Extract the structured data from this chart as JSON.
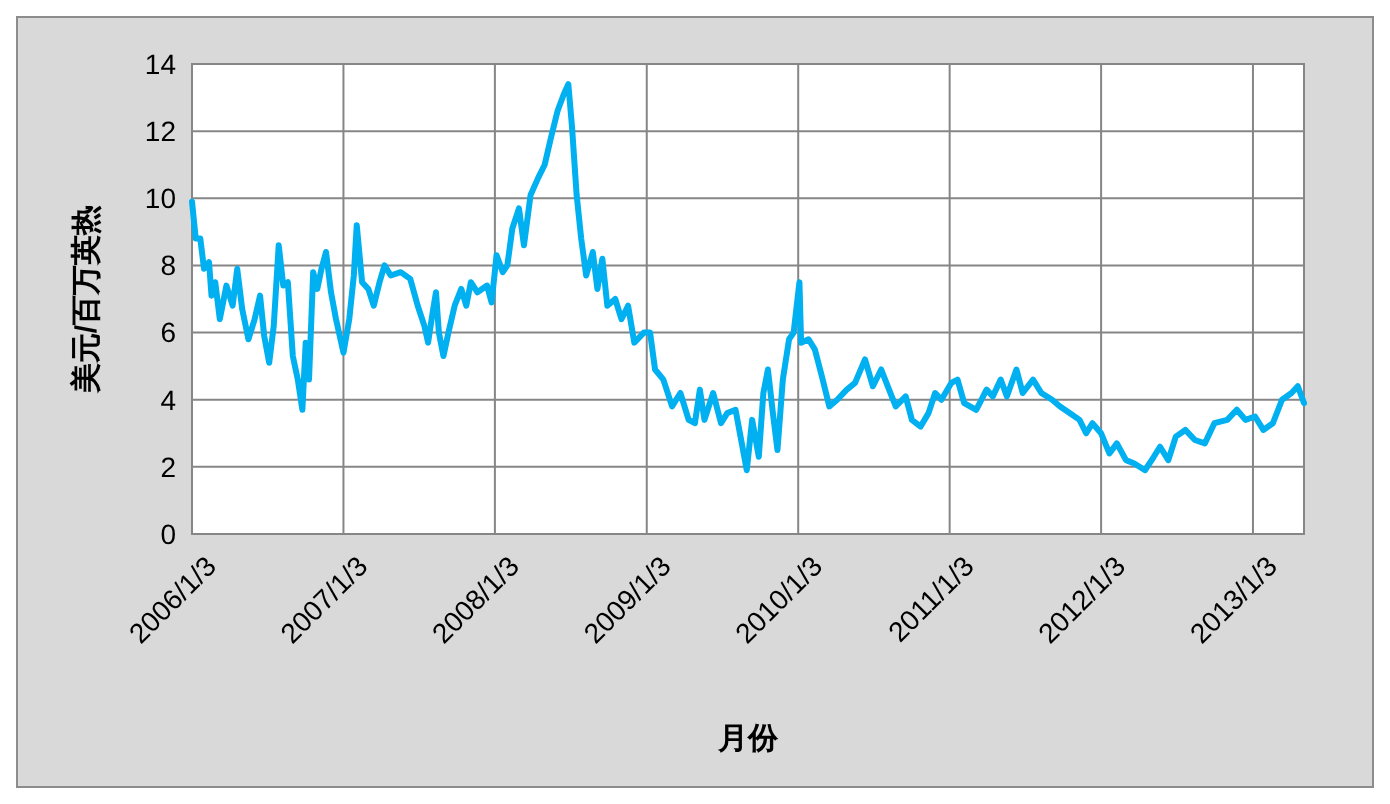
{
  "chart_data": {
    "type": "line",
    "xlabel": "月份",
    "ylabel": "美元/百万英热",
    "xlim": [
      "2006-01-03",
      "2013-05-06"
    ],
    "ylim": [
      0,
      14
    ],
    "yticks": [
      0,
      2,
      4,
      6,
      8,
      10,
      12,
      14
    ],
    "xticks": [
      {
        "value": "2006-01-03",
        "label": "2006/1/3"
      },
      {
        "value": "2007-01-03",
        "label": "2007/1/3"
      },
      {
        "value": "2008-01-03",
        "label": "2008/1/3"
      },
      {
        "value": "2009-01-03",
        "label": "2009/1/3"
      },
      {
        "value": "2010-01-03",
        "label": "2010/1/3"
      },
      {
        "value": "2011-01-03",
        "label": "2011/1/3"
      },
      {
        "value": "2012-01-03",
        "label": "2012/1/3"
      },
      {
        "value": "2013-01-03",
        "label": "2013/1/3"
      }
    ],
    "grid": true,
    "marker": "none",
    "line_style": "solid",
    "series": [
      {
        "color": "#00b0f0",
        "x": [
          "2006-01-03",
          "2006-01-12",
          "2006-01-23",
          "2006-02-01",
          "2006-02-13",
          "2006-02-19",
          "2006-02-28",
          "2006-03-11",
          "2006-03-27",
          "2006-04-11",
          "2006-04-22",
          "2006-05-04",
          "2006-05-19",
          "2006-06-03",
          "2006-06-16",
          "2006-06-26",
          "2006-07-08",
          "2006-07-19",
          "2006-07-31",
          "2006-08-11",
          "2006-08-22",
          "2006-09-03",
          "2006-09-15",
          "2006-09-26",
          "2006-10-04",
          "2006-10-12",
          "2006-10-22",
          "2006-11-01",
          "2006-11-11",
          "2006-11-22",
          "2006-12-04",
          "2006-12-16",
          "2007-01-03",
          "2007-01-17",
          "2007-01-28",
          "2007-02-04",
          "2007-02-17",
          "2007-03-04",
          "2007-03-17",
          "2007-03-31",
          "2007-04-12",
          "2007-04-27",
          "2007-05-21",
          "2007-06-13",
          "2007-07-01",
          "2007-07-17",
          "2007-07-26",
          "2007-08-06",
          "2007-08-14",
          "2007-08-21",
          "2007-09-01",
          "2007-09-13",
          "2007-09-28",
          "2007-10-14",
          "2007-10-26",
          "2007-11-06",
          "2007-11-22",
          "2007-12-15",
          "2007-12-26",
          "2008-01-07",
          "2008-01-22",
          "2008-02-02",
          "2008-02-14",
          "2008-03-01",
          "2008-03-13",
          "2008-03-29",
          "2008-04-16",
          "2008-05-02",
          "2008-05-17",
          "2008-06-02",
          "2008-06-17",
          "2008-06-28",
          "2008-07-07",
          "2008-07-18",
          "2008-07-29",
          "2008-08-10",
          "2008-08-26",
          "2008-09-06",
          "2008-09-18",
          "2008-09-30",
          "2008-10-19",
          "2008-11-03",
          "2008-11-19",
          "2008-12-04",
          "2008-12-27",
          "2009-01-11",
          "2009-01-23",
          "2009-02-12",
          "2009-03-05",
          "2009-03-25",
          "2009-04-14",
          "2009-04-29",
          "2009-05-11",
          "2009-05-22",
          "2009-06-12",
          "2009-07-01",
          "2009-07-16",
          "2009-08-05",
          "2009-08-17",
          "2009-09-01",
          "2009-09-14",
          "2009-09-30",
          "2009-10-11",
          "2009-10-22",
          "2009-11-03",
          "2009-11-14",
          "2009-11-27",
          "2009-12-12",
          "2009-12-23",
          "2010-01-06",
          "2010-01-10",
          "2010-01-28",
          "2010-02-12",
          "2010-03-01",
          "2010-03-19",
          "2010-04-07",
          "2010-04-30",
          "2010-05-20",
          "2010-06-13",
          "2010-07-02",
          "2010-07-22",
          "2010-08-10",
          "2010-08-26",
          "2010-09-19",
          "2010-10-04",
          "2010-10-25",
          "2010-11-13",
          "2010-11-29",
          "2010-12-14",
          "2011-01-07",
          "2011-01-22",
          "2011-02-07",
          "2011-03-08",
          "2011-04-02",
          "2011-04-17",
          "2011-05-06",
          "2011-05-21",
          "2011-06-13",
          "2011-06-28",
          "2011-07-23",
          "2011-08-12",
          "2011-09-07",
          "2011-09-26",
          "2011-10-20",
          "2011-11-12",
          "2011-11-28",
          "2011-12-13",
          "2012-01-03",
          "2012-01-23",
          "2012-02-10",
          "2012-03-03",
          "2012-03-23",
          "2012-04-18",
          "2012-05-09",
          "2012-05-24",
          "2012-06-13",
          "2012-07-01",
          "2012-07-24",
          "2012-08-16",
          "2012-09-09",
          "2012-10-02",
          "2012-11-02",
          "2012-11-25",
          "2012-12-16",
          "2013-01-08",
          "2013-01-28",
          "2013-02-20",
          "2013-03-14",
          "2013-04-06",
          "2013-04-21",
          "2013-05-06"
        ],
        "values": [
          9.9,
          8.8,
          8.8,
          7.9,
          8.1,
          7.1,
          7.5,
          6.4,
          7.4,
          6.8,
          7.9,
          6.7,
          5.8,
          6.4,
          7.1,
          5.9,
          5.1,
          6.2,
          8.6,
          7.4,
          7.5,
          5.3,
          4.6,
          3.7,
          5.7,
          4.6,
          7.8,
          7.3,
          7.9,
          8.4,
          7.2,
          6.4,
          5.4,
          6.4,
          7.7,
          9.2,
          7.5,
          7.3,
          6.8,
          7.5,
          8.0,
          7.7,
          7.8,
          7.6,
          6.8,
          6.2,
          5.7,
          6.6,
          7.2,
          6.0,
          5.3,
          6.0,
          6.8,
          7.3,
          6.8,
          7.5,
          7.2,
          7.4,
          6.9,
          8.3,
          7.8,
          8.0,
          9.1,
          9.7,
          8.6,
          10.1,
          10.6,
          11.0,
          11.8,
          12.6,
          13.1,
          13.4,
          12.1,
          10.1,
          8.8,
          7.7,
          8.4,
          7.3,
          8.2,
          6.8,
          7.0,
          6.4,
          6.8,
          5.7,
          6.0,
          6.0,
          4.9,
          4.6,
          3.8,
          4.2,
          3.4,
          3.3,
          4.3,
          3.4,
          4.2,
          3.3,
          3.6,
          3.7,
          2.9,
          1.9,
          3.4,
          2.3,
          4.2,
          4.9,
          3.6,
          2.5,
          4.6,
          5.8,
          6.0,
          7.5,
          5.7,
          5.8,
          5.5,
          4.7,
          3.8,
          4.0,
          4.3,
          4.5,
          5.2,
          4.4,
          4.9,
          4.3,
          3.8,
          4.1,
          3.4,
          3.2,
          3.6,
          4.2,
          4.0,
          4.5,
          4.6,
          3.9,
          3.7,
          4.3,
          4.1,
          4.6,
          4.1,
          4.9,
          4.2,
          4.6,
          4.2,
          4.0,
          3.8,
          3.6,
          3.4,
          3.0,
          3.3,
          3.0,
          2.4,
          2.7,
          2.2,
          2.1,
          1.9,
          2.3,
          2.6,
          2.2,
          2.9,
          3.1,
          2.8,
          2.7,
          3.3,
          3.4,
          3.7,
          3.4,
          3.5,
          3.1,
          3.3,
          4.0,
          4.2,
          4.4,
          3.9
        ]
      }
    ]
  }
}
